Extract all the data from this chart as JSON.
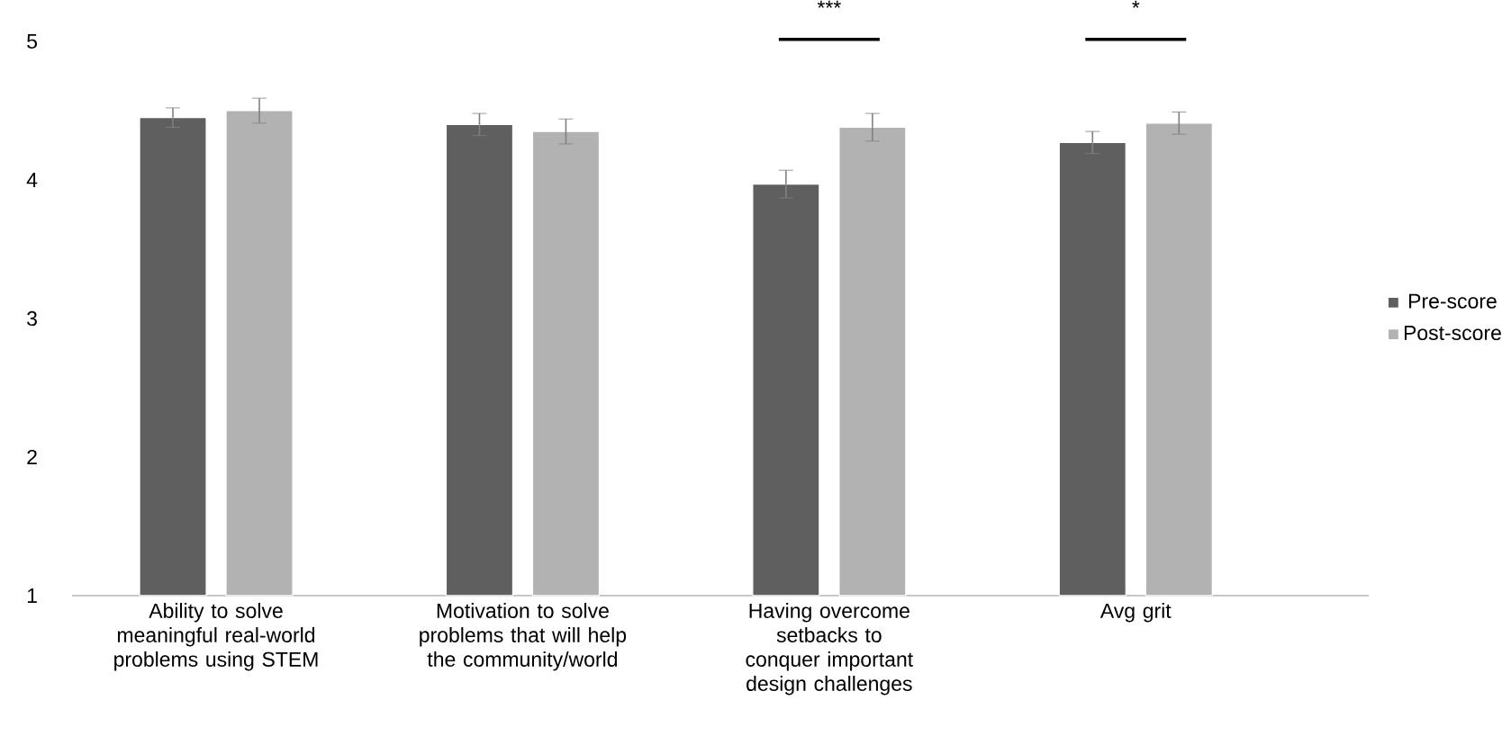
{
  "chart_data": {
    "type": "bar",
    "categories": [
      "Ability to solve meaningful real-world problems using STEM",
      "Motivation to solve problems that will help the community/world",
      "Having overcome setbacks to conquer important design challenges",
      "Avg grit"
    ],
    "series": [
      {
        "name": "Pre-score",
        "color": "#5f5f5f",
        "values": [
          4.45,
          4.4,
          3.97,
          4.27
        ],
        "errors": [
          0.07,
          0.08,
          0.1,
          0.08
        ]
      },
      {
        "name": "Post-score",
        "color": "#b2b2b2",
        "values": [
          4.5,
          4.35,
          4.38,
          4.41
        ],
        "errors": [
          0.09,
          0.09,
          0.1,
          0.08
        ]
      }
    ],
    "ylim": [
      1,
      5
    ],
    "yticks": [
      1,
      2,
      3,
      4,
      5
    ],
    "grid": false,
    "legend": "right",
    "annotations": [
      "***",
      "*"
    ]
  }
}
